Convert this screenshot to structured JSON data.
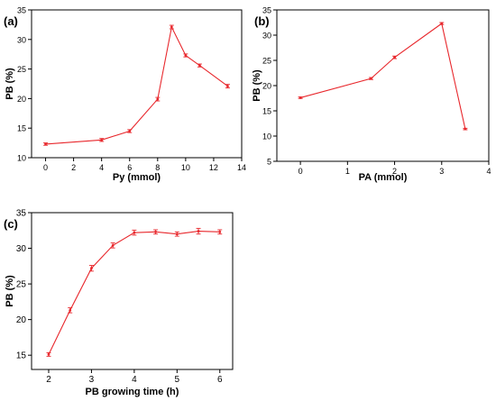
{
  "chart_data": [
    {
      "panel": "(a)",
      "type": "line",
      "xlabel": "Py (mmol)",
      "ylabel": "PB (%)",
      "xlim": [
        -1,
        14
      ],
      "ylim": [
        10,
        35
      ],
      "xticks": [
        0,
        2,
        4,
        6,
        8,
        10,
        12,
        14
      ],
      "yticks": [
        10,
        15,
        20,
        25,
        30,
        35
      ],
      "x": [
        0,
        4,
        6,
        8,
        9,
        10,
        11,
        13
      ],
      "y": [
        12.3,
        13.0,
        14.5,
        19.9,
        32.1,
        27.3,
        25.6,
        22.1
      ],
      "err": [
        0.2,
        0.25,
        0.25,
        0.3,
        0.3,
        0.25,
        0.25,
        0.3
      ],
      "color": "#e8272c",
      "grid": false
    },
    {
      "panel": "(b)",
      "type": "line",
      "xlabel": "PA (mmol)",
      "ylabel": "PB (%)",
      "xlim": [
        -0.5,
        4
      ],
      "ylim": [
        5,
        35
      ],
      "xticks": [
        0,
        1,
        2,
        3,
        4
      ],
      "yticks": [
        5,
        10,
        15,
        20,
        25,
        30,
        35
      ],
      "x": [
        0,
        1.5,
        2,
        3,
        3.5
      ],
      "y": [
        17.6,
        21.4,
        25.6,
        32.3,
        11.4
      ],
      "err": [
        0.15,
        0.2,
        0.25,
        0.2,
        0.15
      ],
      "color": "#e8272c",
      "grid": false
    },
    {
      "panel": "(c)",
      "type": "line",
      "xlabel": "PB growing time (h)",
      "ylabel": "PB (%)",
      "xlim": [
        1.6,
        6.3
      ],
      "ylim": [
        13,
        35
      ],
      "xticks": [
        2,
        3,
        4,
        5,
        6
      ],
      "yticks": [
        15,
        20,
        25,
        30,
        35
      ],
      "x": [
        2,
        2.5,
        3,
        3.5,
        4,
        4.5,
        5,
        5.5,
        6
      ],
      "y": [
        15.1,
        21.3,
        27.2,
        30.4,
        32.2,
        32.3,
        32.0,
        32.4,
        32.3
      ],
      "err": [
        0.25,
        0.35,
        0.4,
        0.35,
        0.35,
        0.3,
        0.3,
        0.4,
        0.3
      ],
      "color": "#e8272c",
      "grid": false
    }
  ]
}
